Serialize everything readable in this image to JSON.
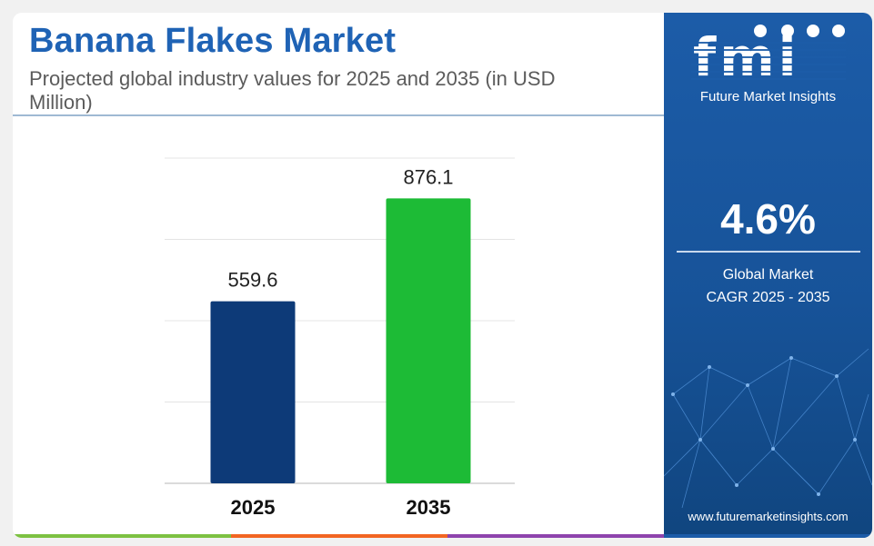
{
  "header": {
    "title": "Banana Flakes Market",
    "subtitle": "Projected global industry values for 2025 and 2035 (in USD Million)"
  },
  "sidebar": {
    "logo_mark": "fmi",
    "logo_text": "Future Market Insights",
    "cagr_value": "4.6%",
    "cagr_label_line1": "Global Market",
    "cagr_label_line2": "CAGR 2025 - 2035",
    "website": "www.futuremarketinsights.com"
  },
  "colors": {
    "title": "#1f63b5",
    "bar_2025": "#0d3a78",
    "bar_2035": "#1dbb36",
    "sidebar": "#1c5ca8",
    "strip": [
      "#7dc142",
      "#f26522",
      "#8e44ad",
      "#1c5ca8"
    ]
  },
  "chart_data": {
    "type": "bar",
    "categories": [
      "2025",
      "2035"
    ],
    "values": [
      559.6,
      876.1
    ],
    "value_labels": [
      "559.6",
      "876.1"
    ],
    "title": "Banana Flakes Market",
    "xlabel": "",
    "ylabel": "",
    "ylim": [
      0,
      1000
    ],
    "grid": true,
    "legend": "none"
  }
}
